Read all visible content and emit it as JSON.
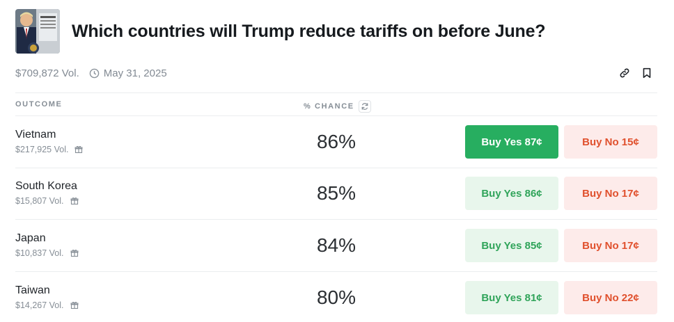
{
  "market": {
    "title": "Which countries will Trump reduce tariffs on before June?",
    "volume": "$709,872 Vol.",
    "end_date": "May 31, 2025"
  },
  "table": {
    "col_outcome": "OUTCOME",
    "col_chance": "% CHANCE"
  },
  "outcomes": [
    {
      "name": "Vietnam",
      "volume": "$217,925 Vol.",
      "chance": "86%",
      "buy_yes": "Buy Yes 87¢",
      "buy_no": "Buy No 15¢"
    },
    {
      "name": "South Korea",
      "volume": "$15,807 Vol.",
      "chance": "85%",
      "buy_yes": "Buy Yes 86¢",
      "buy_no": "Buy No 17¢"
    },
    {
      "name": "Japan",
      "volume": "$10,837 Vol.",
      "chance": "84%",
      "buy_yes": "Buy Yes 85¢",
      "buy_no": "Buy No 17¢"
    },
    {
      "name": "Taiwan",
      "volume": "$14,267 Vol.",
      "chance": "80%",
      "buy_yes": "Buy Yes 81¢",
      "buy_no": "Buy No 22¢"
    }
  ],
  "icons": {
    "clock": "clock-icon",
    "link": "link-icon",
    "bookmark": "bookmark-icon",
    "refresh": "refresh-icon",
    "gift": "gift-icon"
  },
  "colors": {
    "yes_active_bg": "#27ae60",
    "yes_bg": "#e8f6ec",
    "yes_text": "#30a45a",
    "no_bg": "#fdebea",
    "no_text": "#e0502d"
  }
}
